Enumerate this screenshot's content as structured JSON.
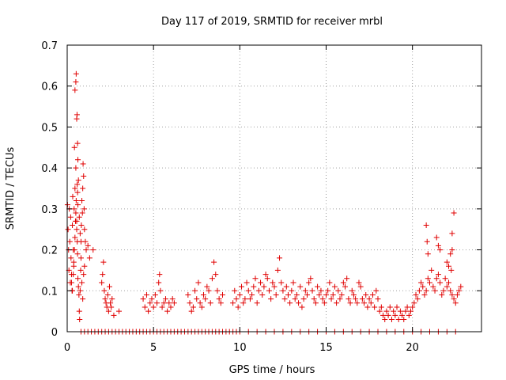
{
  "chart_data": {
    "type": "scatter",
    "title": "Day 117 of 2019, SRMTID for receiver mrbl",
    "xlabel": "GPS time / hours",
    "ylabel": "SRMTID / TECUs",
    "xlim": [
      0,
      24
    ],
    "ylim": [
      0,
      0.7
    ],
    "xticks": [
      0,
      5,
      10,
      15,
      20
    ],
    "yticks": [
      0,
      0.1,
      0.2,
      0.3,
      0.4,
      0.5,
      0.6,
      0.7
    ],
    "xtick_labels": [
      "0",
      "5",
      "10",
      "15",
      "20"
    ],
    "ytick_labels": [
      "0",
      "0.1",
      "0.2",
      "0.3",
      "0.4",
      "0.5",
      "0.6",
      "0.7"
    ],
    "grid": true,
    "marker": "+",
    "color": "#e00000",
    "series": [
      {
        "name": "SRMTID",
        "x": [
          0.02,
          0.05,
          0.08,
          0.1,
          0.12,
          0.15,
          0.18,
          0.2,
          0.22,
          0.25,
          0.28,
          0.3,
          0.32,
          0.35,
          0.38,
          0.4,
          0.42,
          0.45,
          0.48,
          0.5,
          0.52,
          0.55,
          0.58,
          0.6,
          0.62,
          0.65,
          0.68,
          0.7,
          0.72,
          0.75,
          0.78,
          0.8,
          0.82,
          0.85,
          0.88,
          0.9,
          0.92,
          0.95,
          0.98,
          1.0,
          1.05,
          1.1,
          1.2,
          1.3,
          1.5,
          0.45,
          0.5,
          0.52,
          0.55,
          0.57,
          0.6,
          0.62,
          0.65,
          0.7,
          0.75,
          0.8,
          0.85,
          0.9,
          0.95,
          1.0,
          0.58,
          0.6,
          0.62,
          0.55,
          0.5,
          0.45,
          0.42,
          0.38,
          0.35,
          0.3,
          0.25,
          2.0,
          2.05,
          2.1,
          2.15,
          2.2,
          2.25,
          2.3,
          2.35,
          2.4,
          2.45,
          2.5,
          2.55,
          2.6,
          2.7,
          3.0,
          4.4,
          4.5,
          4.6,
          4.7,
          4.8,
          4.9,
          5.0,
          5.1,
          5.2,
          5.3,
          5.35,
          5.4,
          5.5,
          5.6,
          5.7,
          5.8,
          5.9,
          6.0,
          6.1,
          6.2,
          7.0,
          7.1,
          7.2,
          7.3,
          7.4,
          7.5,
          7.6,
          7.7,
          7.8,
          7.9,
          8.0,
          8.1,
          8.2,
          8.3,
          8.4,
          8.5,
          8.6,
          8.7,
          8.8,
          8.9,
          9.0,
          9.6,
          9.7,
          9.8,
          9.9,
          10.0,
          10.1,
          10.2,
          10.3,
          10.4,
          10.5,
          10.6,
          10.7,
          10.8,
          10.9,
          11.0,
          11.1,
          11.2,
          11.3,
          11.4,
          11.5,
          11.6,
          11.7,
          11.8,
          11.9,
          12.0,
          12.1,
          12.2,
          12.3,
          12.4,
          12.5,
          12.6,
          12.7,
          12.8,
          12.9,
          13.0,
          13.1,
          13.2,
          13.3,
          13.4,
          13.5,
          13.6,
          13.7,
          13.8,
          13.9,
          14.0,
          14.1,
          14.2,
          14.3,
          14.4,
          14.5,
          14.6,
          14.7,
          14.8,
          14.9,
          15.0,
          15.1,
          15.2,
          15.3,
          15.4,
          15.5,
          15.6,
          15.7,
          15.8,
          15.9,
          16.0,
          16.1,
          16.2,
          16.3,
          16.4,
          16.5,
          16.6,
          16.7,
          16.8,
          16.9,
          17.0,
          17.1,
          17.2,
          17.3,
          17.4,
          17.5,
          17.6,
          17.7,
          17.8,
          17.9,
          18.0,
          18.1,
          18.2,
          18.3,
          18.4,
          18.5,
          18.6,
          18.7,
          18.8,
          18.9,
          19.0,
          19.1,
          19.2,
          19.3,
          19.4,
          19.5,
          19.6,
          19.7,
          19.8,
          19.9,
          20.0,
          20.1,
          20.2,
          20.3,
          20.4,
          20.5,
          20.6,
          20.7,
          20.8,
          20.9,
          21.0,
          21.1,
          21.2,
          21.3,
          21.4,
          21.5,
          21.6,
          21.7,
          21.8,
          21.9,
          22.0,
          22.1,
          22.2,
          22.3,
          22.4,
          22.5,
          22.6,
          22.7,
          22.8,
          20.8,
          20.85,
          20.9,
          21.4,
          21.5,
          21.6,
          22.0,
          22.1,
          22.2,
          22.3,
          22.4,
          22.3,
          22.25,
          0.8,
          1.0,
          1.2,
          1.4,
          1.6,
          1.8,
          2.0,
          2.2,
          2.4,
          2.6,
          2.8,
          3.0,
          3.2,
          3.4,
          3.6,
          3.8,
          4.0,
          4.2,
          4.4,
          4.6,
          4.8,
          5.0,
          5.2,
          5.4,
          5.6,
          5.8,
          6.0,
          6.2,
          6.4,
          6.6,
          6.8,
          7.0,
          7.2,
          7.4,
          7.6,
          7.8,
          8.0,
          8.2,
          8.4,
          8.6,
          8.8,
          9.0,
          9.2,
          9.4,
          9.6,
          9.8,
          10.0,
          10.5,
          11.0,
          11.5,
          12.0,
          12.5,
          13.0,
          13.5,
          14.0,
          14.5,
          15.0,
          15.5,
          16.0,
          16.5,
          17.0,
          17.5,
          18.0,
          18.5,
          19.0,
          19.5,
          20.0,
          20.5,
          21.0,
          21.5,
          22.0,
          22.5
        ],
        "y": [
          0.31,
          0.25,
          0.2,
          0.15,
          0.3,
          0.22,
          0.12,
          0.28,
          0.18,
          0.14,
          0.1,
          0.26,
          0.33,
          0.2,
          0.17,
          0.3,
          0.45,
          0.35,
          0.27,
          0.4,
          0.32,
          0.25,
          0.22,
          0.19,
          0.13,
          0.11,
          0.09,
          0.05,
          0.03,
          0.1,
          0.15,
          0.22,
          0.26,
          0.32,
          0.29,
          0.35,
          0.41,
          0.38,
          0.3,
          0.25,
          0.22,
          0.2,
          0.21,
          0.18,
          0.2,
          0.59,
          0.61,
          0.63,
          0.52,
          0.53,
          0.46,
          0.42,
          0.37,
          0.28,
          0.24,
          0.18,
          0.12,
          0.08,
          0.14,
          0.16,
          0.36,
          0.34,
          0.31,
          0.27,
          0.29,
          0.23,
          0.2,
          0.16,
          0.14,
          0.1,
          0.12,
          0.12,
          0.14,
          0.17,
          0.1,
          0.08,
          0.07,
          0.06,
          0.09,
          0.05,
          0.11,
          0.07,
          0.06,
          0.08,
          0.04,
          0.05,
          0.08,
          0.06,
          0.09,
          0.05,
          0.07,
          0.08,
          0.06,
          0.09,
          0.07,
          0.12,
          0.14,
          0.1,
          0.06,
          0.07,
          0.08,
          0.05,
          0.07,
          0.06,
          0.08,
          0.07,
          0.09,
          0.07,
          0.05,
          0.06,
          0.1,
          0.08,
          0.12,
          0.07,
          0.06,
          0.09,
          0.08,
          0.11,
          0.1,
          0.07,
          0.13,
          0.17,
          0.14,
          0.1,
          0.08,
          0.07,
          0.09,
          0.07,
          0.1,
          0.08,
          0.06,
          0.09,
          0.11,
          0.07,
          0.08,
          0.12,
          0.1,
          0.08,
          0.09,
          0.11,
          0.13,
          0.07,
          0.1,
          0.12,
          0.09,
          0.11,
          0.14,
          0.13,
          0.1,
          0.08,
          0.12,
          0.11,
          0.09,
          0.15,
          0.18,
          0.12,
          0.1,
          0.08,
          0.11,
          0.09,
          0.07,
          0.1,
          0.12,
          0.08,
          0.09,
          0.07,
          0.11,
          0.06,
          0.08,
          0.1,
          0.09,
          0.12,
          0.13,
          0.1,
          0.08,
          0.07,
          0.11,
          0.09,
          0.1,
          0.08,
          0.07,
          0.09,
          0.1,
          0.12,
          0.08,
          0.09,
          0.11,
          0.07,
          0.1,
          0.08,
          0.09,
          0.12,
          0.11,
          0.13,
          0.08,
          0.07,
          0.1,
          0.09,
          0.08,
          0.07,
          0.12,
          0.11,
          0.08,
          0.07,
          0.09,
          0.06,
          0.08,
          0.07,
          0.09,
          0.06,
          0.1,
          0.08,
          0.05,
          0.06,
          0.04,
          0.03,
          0.05,
          0.04,
          0.06,
          0.03,
          0.05,
          0.04,
          0.06,
          0.03,
          0.05,
          0.04,
          0.03,
          0.05,
          0.06,
          0.04,
          0.05,
          0.06,
          0.07,
          0.09,
          0.08,
          0.1,
          0.12,
          0.11,
          0.09,
          0.1,
          0.13,
          0.12,
          0.15,
          0.11,
          0.1,
          0.13,
          0.14,
          0.12,
          0.09,
          0.1,
          0.13,
          0.11,
          0.12,
          0.1,
          0.09,
          0.08,
          0.07,
          0.09,
          0.1,
          0.11,
          0.26,
          0.22,
          0.19,
          0.23,
          0.21,
          0.2,
          0.17,
          0.16,
          0.19,
          0.24,
          0.29,
          0.2,
          0.15,
          0,
          0,
          0,
          0,
          0,
          0,
          0,
          0,
          0,
          0,
          0,
          0,
          0,
          0,
          0,
          0,
          0,
          0,
          0,
          0,
          0,
          0,
          0,
          0,
          0,
          0,
          0,
          0,
          0,
          0,
          0,
          0,
          0,
          0,
          0,
          0,
          0,
          0,
          0,
          0,
          0,
          0,
          0,
          0,
          0,
          0,
          0,
          0,
          0,
          0,
          0,
          0,
          0,
          0,
          0,
          0,
          0,
          0,
          0,
          0,
          0,
          0,
          0,
          0,
          0,
          0,
          0,
          0,
          0,
          0,
          0,
          0
        ]
      }
    ]
  }
}
